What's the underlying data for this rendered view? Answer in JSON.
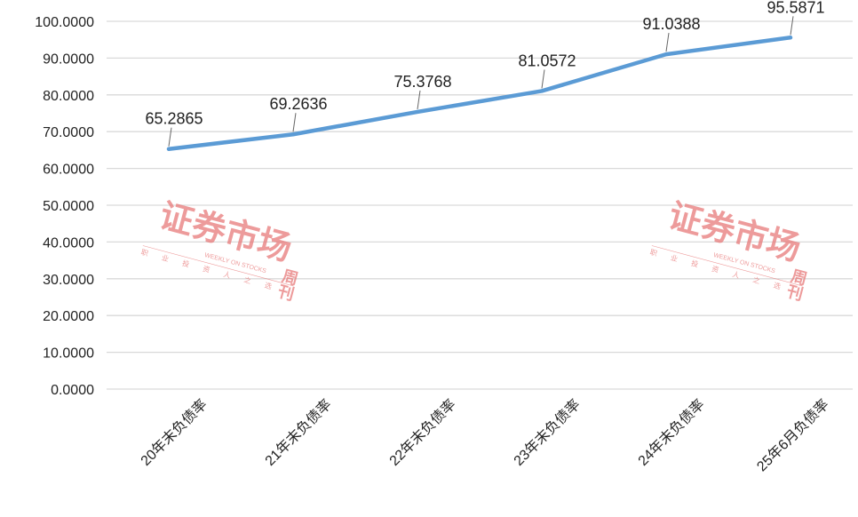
{
  "chart_data": {
    "type": "line",
    "categories": [
      "20年末负债率",
      "21年末负债率",
      "22年末负债率",
      "23年末负债率",
      "24年末负债率",
      "25年6月负债率"
    ],
    "series": [
      {
        "values": [
          65.2865,
          69.2636,
          75.3768,
          81.0572,
          91.0388,
          95.5871
        ]
      }
    ],
    "data_labels": [
      "65.2865",
      "69.2636",
      "75.3768",
      "81.0572",
      "91.0388",
      "95.5871"
    ],
    "ylim": [
      0,
      100
    ],
    "yticks": [
      0,
      10,
      20,
      30,
      40,
      50,
      60,
      70,
      80,
      90,
      100
    ],
    "ytick_labels": [
      "0.0000",
      "10.0000",
      "20.0000",
      "30.0000",
      "40.0000",
      "50.0000",
      "60.0000",
      "70.0000",
      "80.0000",
      "90.0000",
      "100.0000"
    ],
    "grid": true,
    "line_color": "#5b9bd5",
    "grid_color": "#d9d9d9"
  },
  "watermark": {
    "title": "证券市场",
    "suffix": "周刊",
    "english": "WEEKLY ON STOCKS",
    "slogan": [
      "职",
      "业",
      "投",
      "资",
      "人",
      "之",
      "选"
    ],
    "color": "#e87a7a"
  }
}
